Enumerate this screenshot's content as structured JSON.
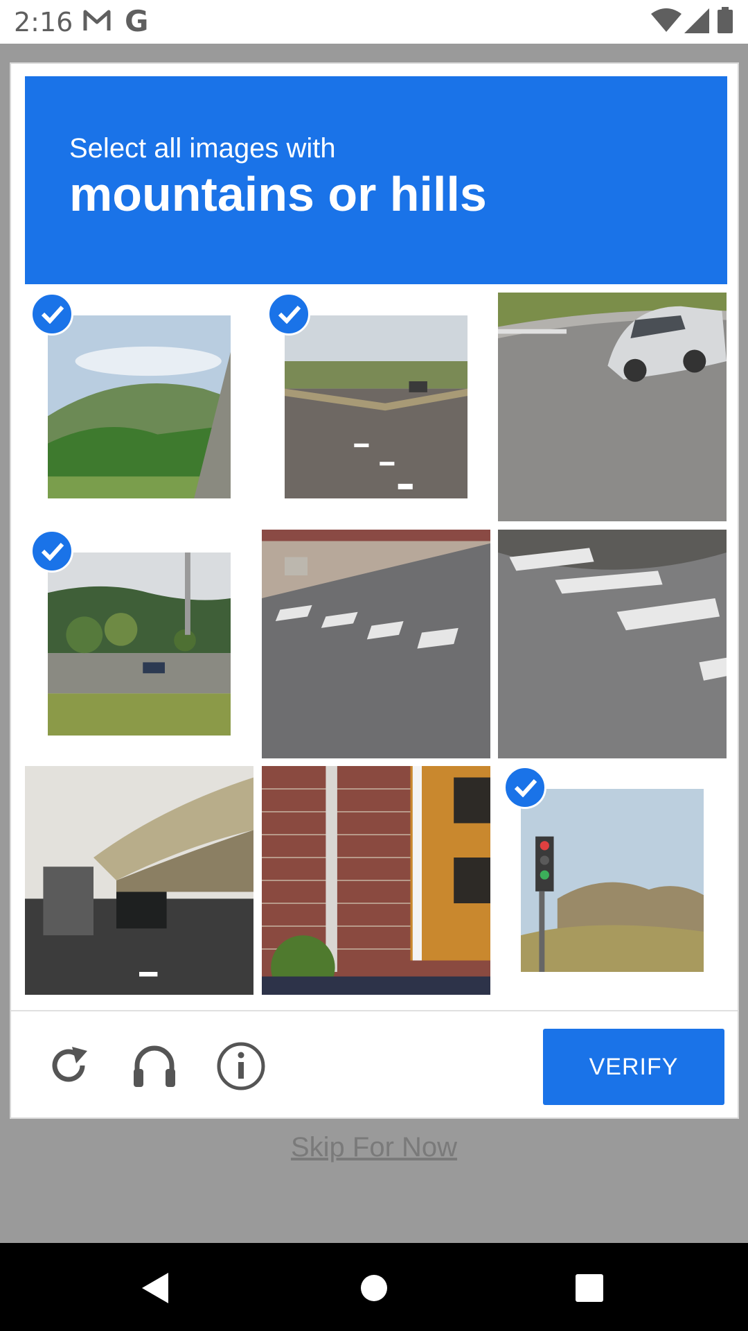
{
  "status_bar": {
    "time": "2:16",
    "icons": [
      "gmail-icon",
      "google-icon",
      "wifi-icon",
      "signal-icon",
      "battery-icon"
    ]
  },
  "captcha": {
    "instruction": "Select all images with",
    "target": "mountains or hills",
    "tiles": [
      {
        "scene": "green hills with overpass",
        "selected": true
      },
      {
        "scene": "road intersection",
        "selected": true
      },
      {
        "scene": "white suv on road",
        "selected": false
      },
      {
        "scene": "hills with trees and highway",
        "selected": true
      },
      {
        "scene": "crosswalk",
        "selected": false
      },
      {
        "scene": "crosswalk close-up",
        "selected": false
      },
      {
        "scene": "highway overpass with truck",
        "selected": false
      },
      {
        "scene": "brick wall with door",
        "selected": false
      },
      {
        "scene": "traffic light and hill",
        "selected": true
      }
    ],
    "toolbar": {
      "reload_icon": "reload-icon",
      "audio_icon": "headphones-icon",
      "info_icon": "info-icon",
      "verify_label": "VERIFY"
    }
  },
  "skip_label": "Skip For Now",
  "colors": {
    "accent": "#1a73e8",
    "overlay": "#9a9a9a"
  }
}
